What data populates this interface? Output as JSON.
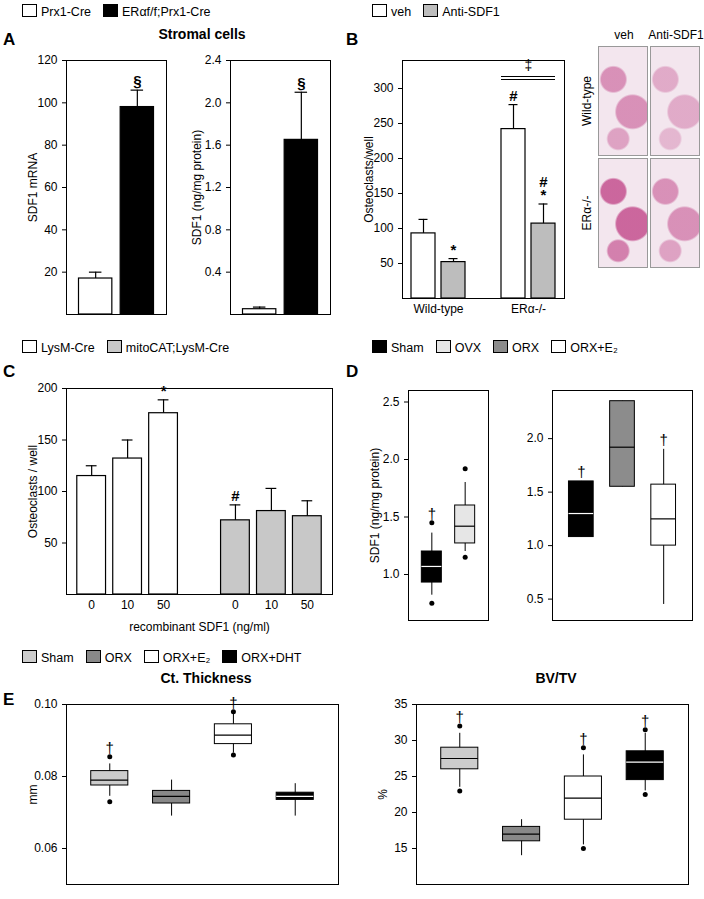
{
  "chart_data": [
    {
      "panel": "A",
      "type": "bar",
      "title": "Stromal cells",
      "legend": "top",
      "tick_labels": "y",
      "ylabel": "SDF1 mRNA",
      "ylim": [
        0,
        120
      ],
      "yticks": [
        20,
        40,
        60,
        80,
        100,
        120
      ],
      "series": [
        {
          "name": "Prx1-Cre",
          "color": "#ffffff",
          "values": [
            17
          ],
          "errors": [
            3
          ]
        },
        {
          "name": "ERαf/f;Prx1-Cre",
          "color": "#000000",
          "values": [
            98
          ],
          "errors": [
            8
          ]
        }
      ],
      "annotations": [
        {
          "series": "ERαf/f;Prx1-Cre",
          "text": "§"
        }
      ]
    },
    {
      "panel": "A",
      "type": "bar",
      "tick_labels": "y",
      "ylabel": "SDF1 (ng/mg protein)",
      "ylim": [
        0,
        2.4
      ],
      "yticks": [
        0.4,
        0.8,
        1.2,
        1.6,
        {
          "value": 2,
          "label": "2.0"
        },
        2.4
      ],
      "series": [
        {
          "name": "Prx1-Cre",
          "color": "#ffffff",
          "values": [
            0.05
          ],
          "errors": [
            0.02
          ]
        },
        {
          "name": "ERαf/f;Prx1-Cre",
          "color": "#000000",
          "values": [
            1.65
          ],
          "errors": [
            0.45
          ]
        }
      ],
      "annotations": [
        {
          "series": "ERαf/f;Prx1-Cre",
          "text": "§"
        }
      ]
    },
    {
      "panel": "B",
      "type": "bar",
      "legend": "top",
      "ylabel": "Osteoclasts/well",
      "ylim": [
        0,
        340
      ],
      "yticks": [
        50,
        100,
        150,
        200,
        250,
        300
      ],
      "categories": [
        "Wild-type",
        "ERα-/-"
      ],
      "series": [
        {
          "name": "veh",
          "color": "#ffffff",
          "values": [
            93,
            242
          ],
          "errors": [
            20,
            35
          ]
        },
        {
          "name": "Anti-SDF1",
          "color": "#bdbdbd",
          "values": [
            52,
            107
          ],
          "errors": [
            5,
            28
          ]
        }
      ],
      "annotations": [
        {
          "series": "Anti-SDF1",
          "category": "Wild-type",
          "text": "*"
        },
        {
          "series": "veh",
          "category": "ERα-/-",
          "text": "#"
        },
        {
          "series": "Anti-SDF1",
          "category": "ERα-/-",
          "text": "*"
        },
        {
          "series": "Anti-SDF1",
          "category": "ERα-/-",
          "text": "#"
        },
        {
          "category": "ERα-/-",
          "text": "‡"
        }
      ],
      "micrographs": {
        "columns": [
          "veh",
          "Anti-SDF1"
        ],
        "rows": [
          "Wild-type",
          "ERα-/-"
        ]
      }
    },
    {
      "panel": "C",
      "type": "bar",
      "legend": "top",
      "ylabel": "Osteoclasts / well",
      "xlabel": "recombinant SDF1 (ng/ml)",
      "ylim": [
        0,
        200
      ],
      "yticks": [
        50,
        100,
        150,
        200
      ],
      "categories": [
        0,
        10,
        50
      ],
      "series": [
        {
          "name": "LysM-Cre",
          "color": "#ffffff",
          "values": [
            115,
            132,
            176
          ],
          "errors": [
            10,
            18,
            13
          ]
        },
        {
          "name": "mitoCAT;LysM-Cre",
          "color": "#c8c8c8",
          "values": [
            72,
            81,
            76
          ],
          "errors": [
            15,
            22,
            15
          ]
        }
      ],
      "annotations": [
        {
          "series": "LysM-Cre",
          "category": 50,
          "text": "*"
        },
        {
          "series": "mitoCAT;LysM-Cre",
          "category": 0,
          "text": "#"
        }
      ]
    },
    {
      "panel": "D",
      "type": "box",
      "legend": "top",
      "tick_labels": "y",
      "ylabel": "SDF1 (ng/mg protein)",
      "ylim": [
        0.6,
        2.6
      ],
      "yticks": [
        {
          "value": 1,
          "label": "1.0"
        },
        1.5,
        {
          "value": 2,
          "label": "2.0"
        },
        2.5
      ],
      "series": [
        {
          "name": "Sham",
          "color": "#000000",
          "whisker_low": 0.82,
          "q1": 0.93,
          "median": 1.07,
          "q3": 1.2,
          "whisker_high": 1.36,
          "points": [
            0.75,
            1.45
          ]
        },
        {
          "name": "OVX",
          "color": "#e6e6e6",
          "whisker_low": 1.2,
          "q1": 1.27,
          "median": 1.42,
          "q3": 1.6,
          "whisker_high": 1.8,
          "points": [
            1.15,
            1.92
          ]
        }
      ],
      "annotations": [
        {
          "series": "Sham",
          "text": "†"
        }
      ]
    },
    {
      "panel": "D",
      "type": "box",
      "tick_labels": "y",
      "ylim": [
        0.3,
        2.45
      ],
      "yticks": [
        0.5,
        {
          "value": 1,
          "label": "1.0"
        },
        1.5,
        {
          "value": 2,
          "label": "2.0"
        }
      ],
      "series": [
        {
          "name": "Sham",
          "color": "#000000",
          "whisker_low": 1.08,
          "q1": 1.08,
          "median": 1.3,
          "q3": 1.6,
          "whisker_high": 1.6
        },
        {
          "name": "ORX",
          "color": "#8c8c8c",
          "whisker_low": 1.55,
          "q1": 1.55,
          "median": 1.92,
          "q3": 2.35,
          "whisker_high": 2.35
        },
        {
          "name": "ORX+E₂",
          "color": "#ffffff",
          "whisker_low": 0.45,
          "q1": 1.0,
          "median": 1.25,
          "q3": 1.57,
          "whisker_high": 1.9
        }
      ],
      "annotations": [
        {
          "series": "Sham",
          "text": "†"
        },
        {
          "series": "ORX+E₂",
          "text": "†"
        }
      ]
    },
    {
      "panel": "E",
      "type": "box",
      "legend": "top",
      "tick_labels": "y",
      "title": "Ct. Thickness",
      "ylabel": "mm",
      "ylim": [
        0.05,
        0.1
      ],
      "yticks": [
        0.06,
        0.08,
        {
          "value": 0.1,
          "label": "0.10"
        }
      ],
      "series": [
        {
          "name": "Sham",
          "color": "#cccccc",
          "whisker_low": 0.0745,
          "q1": 0.0775,
          "median": 0.079,
          "q3": 0.0815,
          "whisker_high": 0.0835,
          "points": [
            0.073,
            0.0855
          ]
        },
        {
          "name": "ORX",
          "color": "#888888",
          "whisker_low": 0.069,
          "q1": 0.0725,
          "median": 0.0745,
          "q3": 0.076,
          "whisker_high": 0.079
        },
        {
          "name": "ORX+E₂",
          "color": "#ffffff",
          "whisker_low": 0.0865,
          "q1": 0.089,
          "median": 0.0915,
          "q3": 0.0945,
          "whisker_high": 0.0975,
          "points": [
            0.086,
            0.098
          ]
        },
        {
          "name": "ORX+DHT",
          "color": "#000000",
          "whisker_low": 0.069,
          "q1": 0.0735,
          "median": 0.0745,
          "q3": 0.0755,
          "whisker_high": 0.078
        }
      ],
      "annotations": [
        {
          "series": "Sham",
          "text": "†"
        },
        {
          "series": "ORX+E₂",
          "text": "†"
        }
      ]
    },
    {
      "panel": "E",
      "type": "box",
      "tick_labels": "y",
      "title": "BV/TV",
      "ylabel": "%",
      "ylim": [
        10,
        35
      ],
      "yticks": [
        15,
        20,
        25,
        30,
        35
      ],
      "series": [
        {
          "name": "Sham",
          "color": "#cccccc",
          "whisker_low": 23.5,
          "q1": 26,
          "median": 27.5,
          "q3": 29,
          "whisker_high": 31,
          "points": [
            23,
            32
          ]
        },
        {
          "name": "ORX",
          "color": "#888888",
          "whisker_low": 14,
          "q1": 16,
          "median": 17,
          "q3": 18,
          "whisker_high": 19
        },
        {
          "name": "ORX+E₂",
          "color": "#ffffff",
          "whisker_low": 15.5,
          "q1": 19,
          "median": 22,
          "q3": 25,
          "whisker_high": 28,
          "points": [
            15,
            29
          ]
        },
        {
          "name": "ORX+DHT",
          "color": "#000000",
          "whisker_low": 23,
          "q1": 24.5,
          "median": 27,
          "q3": 28.5,
          "whisker_high": 31,
          "points": [
            22.5,
            31.5
          ]
        }
      ],
      "annotations": [
        {
          "series": "Sham",
          "text": "†"
        },
        {
          "series": "ORX+E₂",
          "text": "†"
        },
        {
          "series": "ORX+DHT",
          "text": "†"
        }
      ]
    }
  ]
}
